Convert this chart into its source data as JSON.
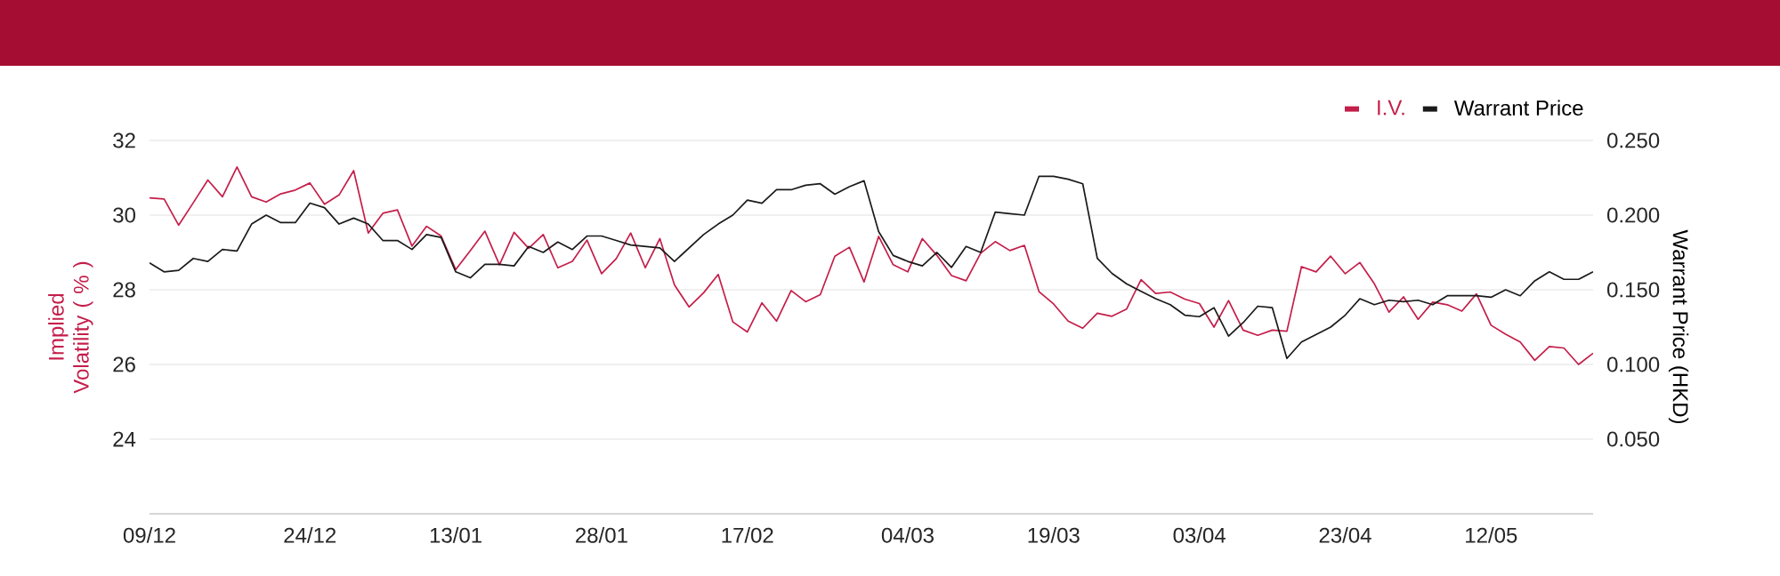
{
  "chart_data": {
    "type": "line",
    "categories": [
      "09/12",
      null,
      null,
      null,
      null,
      null,
      null,
      null,
      null,
      null,
      null,
      "24/12",
      null,
      null,
      null,
      null,
      null,
      null,
      null,
      null,
      null,
      "13/01",
      null,
      null,
      null,
      null,
      null,
      null,
      null,
      null,
      null,
      "28/01",
      null,
      null,
      null,
      null,
      null,
      null,
      null,
      null,
      null,
      "17/02",
      null,
      null,
      null,
      null,
      null,
      null,
      null,
      null,
      null,
      null,
      "04/03",
      null,
      null,
      null,
      null,
      null,
      null,
      null,
      null,
      null,
      "19/03",
      null,
      null,
      null,
      null,
      null,
      null,
      null,
      null,
      null,
      "03/04",
      null,
      null,
      null,
      null,
      null,
      null,
      null,
      null,
      null,
      "23/04",
      null,
      null,
      null,
      null,
      null,
      null,
      null,
      null,
      null,
      "12/05",
      null,
      null,
      null,
      null,
      null,
      null,
      null
    ],
    "ylabel": "Implied Volatility ( % )",
    "y2label": "Warrant Price (HKD)",
    "ylim": [
      22,
      32
    ],
    "yticks": [
      24,
      26,
      28,
      30,
      32
    ],
    "y2lim": [
      0,
      0.25
    ],
    "y2ticks": [
      {
        "value": 0.05,
        "label": "0.050"
      },
      {
        "value": 0.1,
        "label": "0.100"
      },
      {
        "value": 0.15,
        "label": "0.150"
      },
      {
        "value": 0.2,
        "label": "0.200"
      },
      {
        "value": 0.25,
        "label": "0.250"
      }
    ],
    "grid": "y",
    "legend": "top right",
    "series": [
      {
        "name": "I.V.",
        "color": "#c41e4a",
        "values": [
          30.46,
          30.43,
          29.73,
          30.33,
          30.94,
          30.49,
          31.29,
          30.49,
          30.35,
          30.57,
          30.67,
          30.86,
          30.29,
          30.54,
          31.19,
          29.52,
          30.05,
          30.14,
          29.17,
          29.7,
          29.44,
          28.54,
          29.05,
          29.57,
          28.67,
          29.54,
          29.11,
          29.48,
          28.59,
          28.76,
          29.33,
          28.43,
          28.83,
          29.52,
          28.59,
          29.37,
          28.13,
          27.54,
          27.92,
          28.41,
          27.14,
          26.87,
          27.65,
          27.16,
          27.98,
          27.68,
          27.87,
          28.9,
          29.14,
          28.21,
          29.43,
          28.67,
          28.48,
          29.37,
          28.92,
          28.38,
          28.24,
          28.98,
          29.29,
          29.05,
          29.19,
          27.95,
          27.62,
          27.16,
          26.97,
          27.37,
          27.29,
          27.48,
          28.27,
          27.9,
          27.94,
          27.75,
          27.63,
          27.0,
          27.71,
          26.92,
          26.78,
          26.92,
          26.89,
          28.62,
          28.48,
          28.9,
          28.43,
          28.73,
          28.16,
          27.4,
          27.81,
          27.21,
          27.67,
          27.6,
          27.43,
          27.89,
          27.05,
          26.81,
          26.6,
          26.11,
          26.48,
          26.44,
          26.0,
          26.3
        ]
      },
      {
        "name": "Warrant Price",
        "color": "#1a1a1a",
        "axis": "y2",
        "values": [
          0.168,
          0.162,
          0.163,
          0.171,
          0.169,
          0.177,
          0.176,
          0.194,
          0.2,
          0.195,
          0.195,
          0.208,
          0.205,
          0.194,
          0.198,
          0.194,
          0.183,
          0.183,
          0.177,
          0.187,
          0.185,
          0.162,
          0.158,
          0.167,
          0.167,
          0.166,
          0.179,
          0.175,
          0.182,
          0.177,
          0.186,
          0.186,
          0.183,
          0.18,
          0.179,
          0.178,
          0.169,
          0.178,
          0.187,
          0.194,
          0.2,
          0.21,
          0.208,
          0.217,
          0.217,
          0.22,
          0.221,
          0.214,
          0.219,
          0.223,
          0.189,
          0.173,
          0.169,
          0.166,
          0.175,
          0.165,
          0.179,
          0.175,
          0.202,
          0.201,
          0.2,
          0.226,
          0.226,
          0.224,
          0.221,
          0.171,
          0.161,
          0.154,
          0.149,
          0.144,
          0.14,
          0.133,
          0.132,
          0.138,
          0.119,
          0.128,
          0.139,
          0.138,
          0.104,
          0.115,
          0.12,
          0.125,
          0.133,
          0.144,
          0.14,
          0.143,
          0.142,
          0.143,
          0.14,
          0.146,
          0.146,
          0.146,
          0.145,
          0.15,
          0.146,
          0.156,
          0.162,
          0.157,
          0.157,
          0.162
        ]
      }
    ]
  }
}
